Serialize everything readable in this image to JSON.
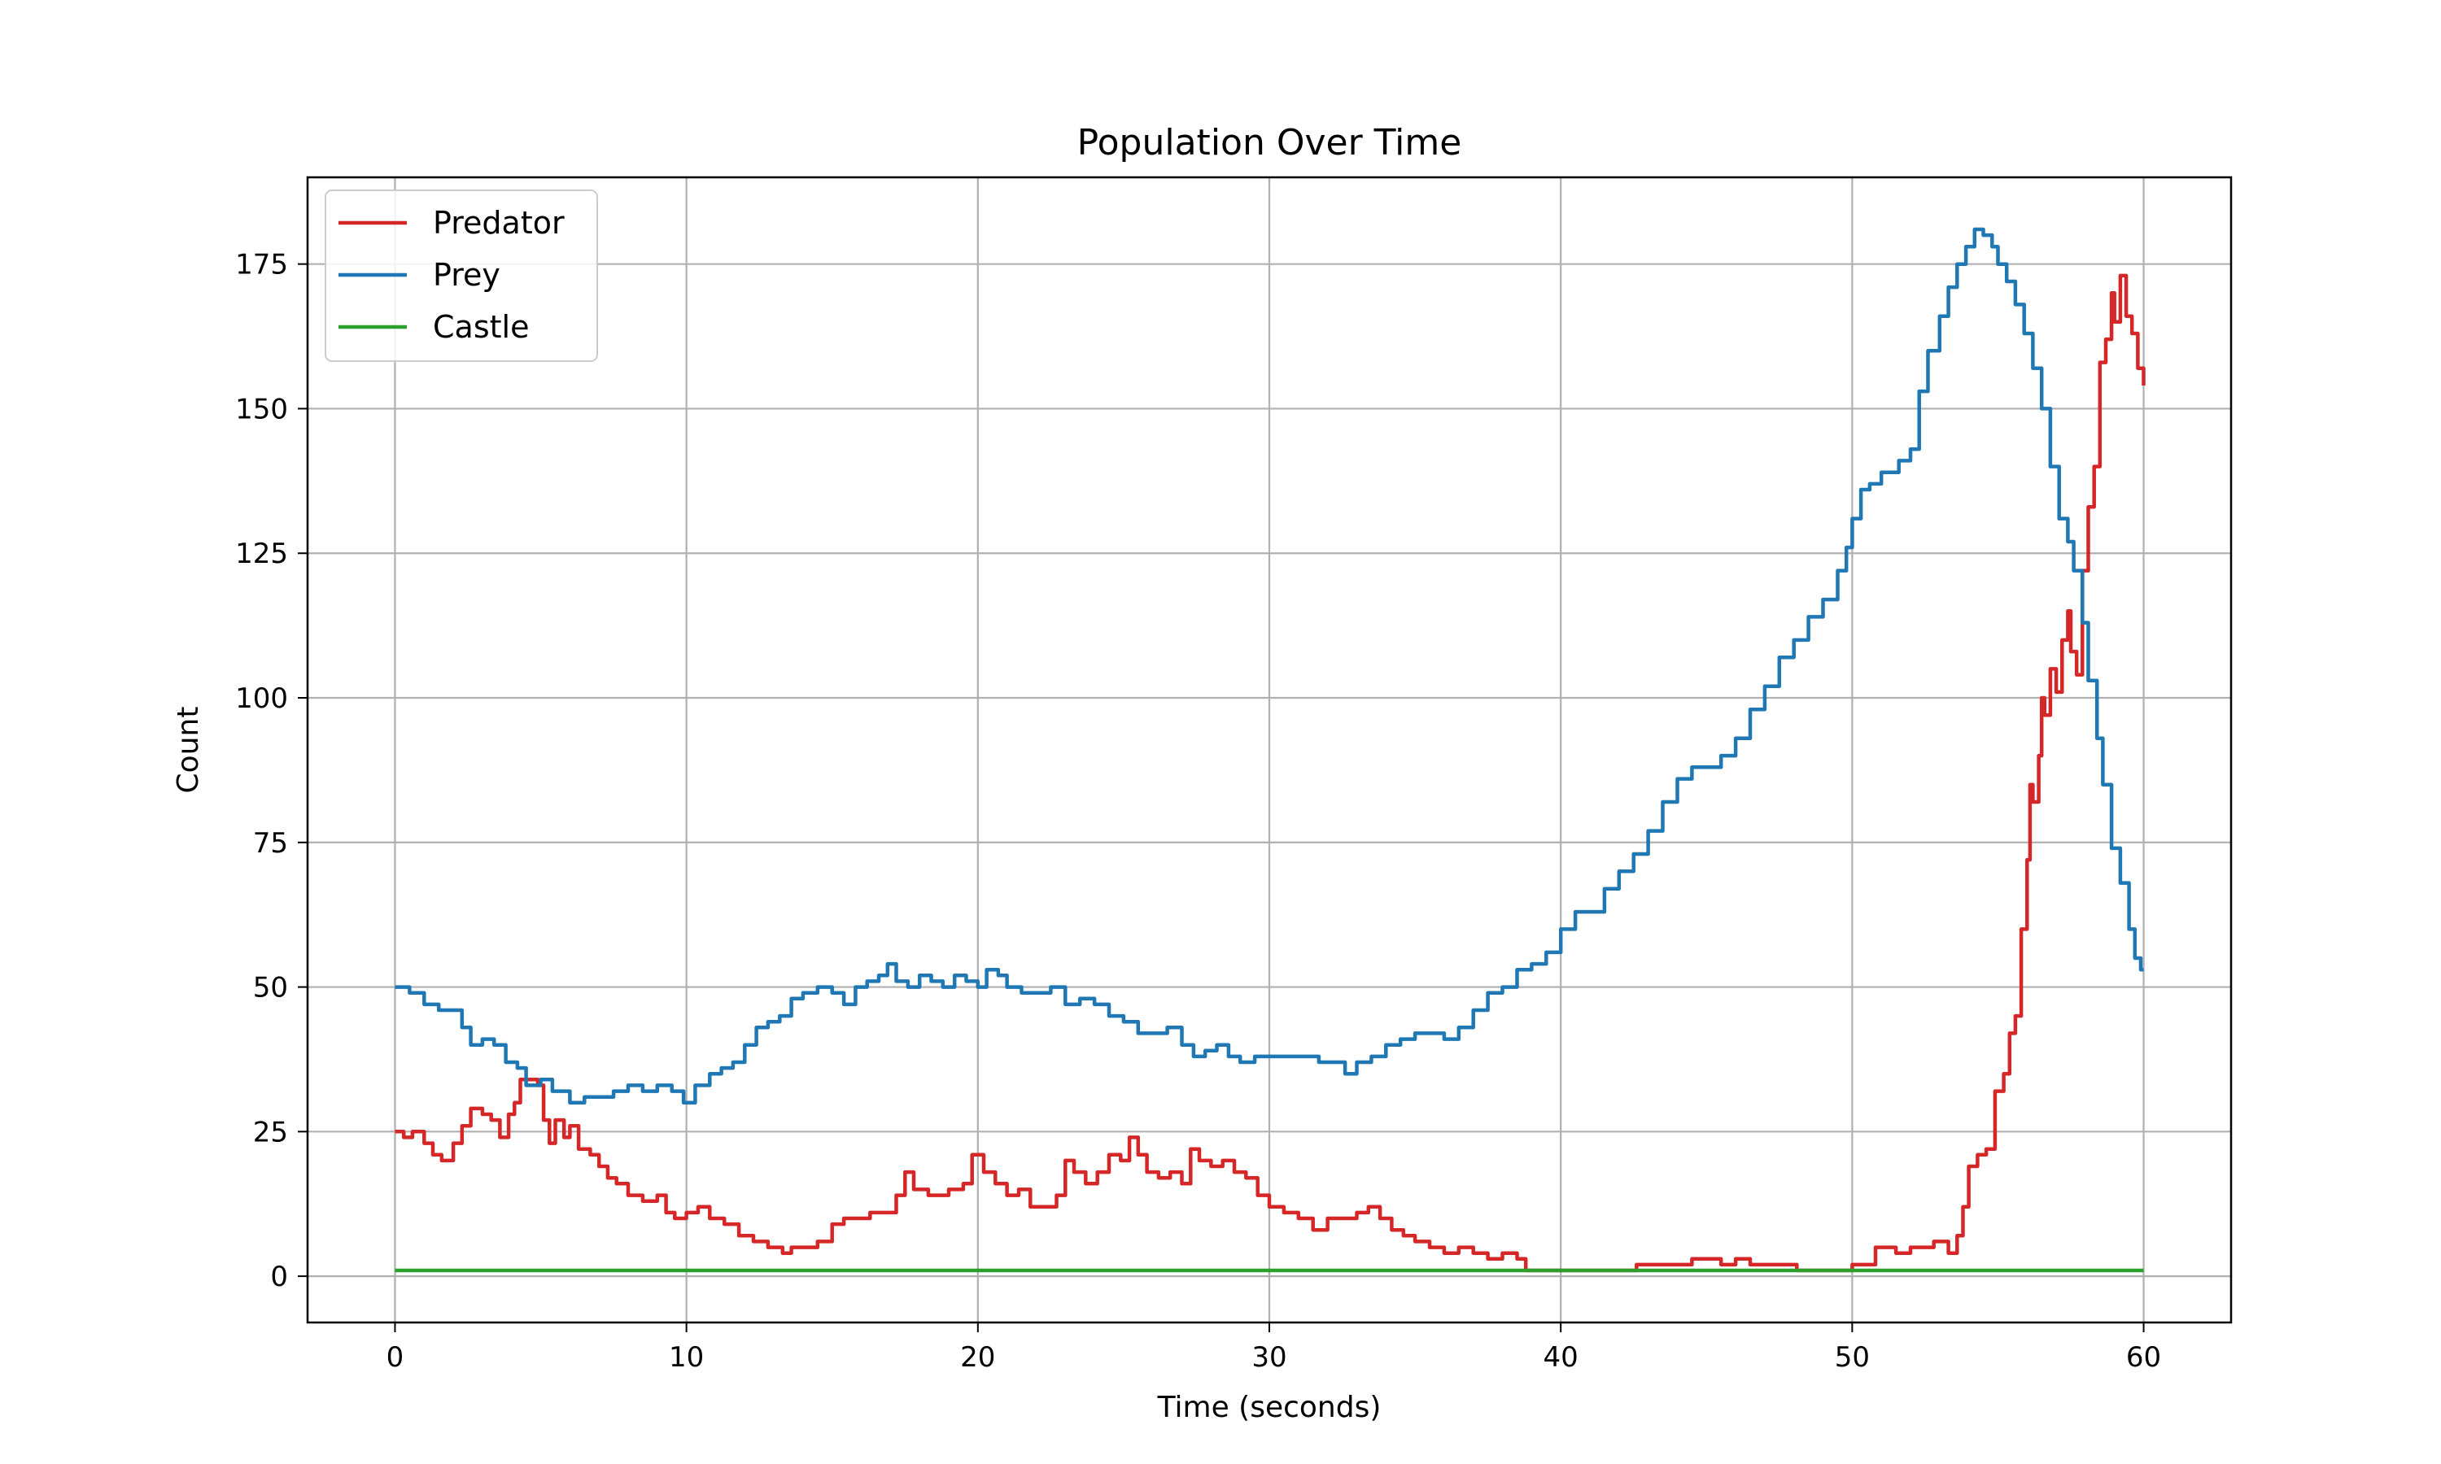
{
  "chart_data": {
    "type": "line",
    "title": "Population Over Time",
    "xlabel": "Time (seconds)",
    "ylabel": "Count",
    "xlim": [
      -3,
      63
    ],
    "ylim": [
      -8,
      190
    ],
    "xticks": [
      0,
      10,
      20,
      30,
      40,
      50,
      60
    ],
    "yticks": [
      0,
      25,
      50,
      75,
      100,
      125,
      150,
      175
    ],
    "grid": true,
    "legend_position": "top-left",
    "series": [
      {
        "name": "Predator",
        "color": "#d62728",
        "step": true,
        "points": [
          [
            0,
            25
          ],
          [
            0.3,
            24
          ],
          [
            0.6,
            25
          ],
          [
            1.0,
            23
          ],
          [
            1.3,
            21
          ],
          [
            1.6,
            20
          ],
          [
            2.0,
            23
          ],
          [
            2.3,
            26
          ],
          [
            2.6,
            29
          ],
          [
            3.0,
            28
          ],
          [
            3.3,
            27
          ],
          [
            3.6,
            24
          ],
          [
            3.9,
            28
          ],
          [
            4.1,
            30
          ],
          [
            4.3,
            34
          ],
          [
            4.6,
            34
          ],
          [
            4.9,
            33
          ],
          [
            5.1,
            27
          ],
          [
            5.3,
            23
          ],
          [
            5.5,
            27
          ],
          [
            5.8,
            24
          ],
          [
            6.0,
            26
          ],
          [
            6.3,
            22
          ],
          [
            6.7,
            21
          ],
          [
            7.0,
            19
          ],
          [
            7.3,
            17
          ],
          [
            7.6,
            16
          ],
          [
            8.0,
            14
          ],
          [
            8.5,
            13
          ],
          [
            9.0,
            14
          ],
          [
            9.3,
            11
          ],
          [
            9.6,
            10
          ],
          [
            10.0,
            11
          ],
          [
            10.4,
            12
          ],
          [
            10.8,
            10
          ],
          [
            11.3,
            9
          ],
          [
            11.8,
            7
          ],
          [
            12.3,
            6
          ],
          [
            12.8,
            5
          ],
          [
            13.3,
            4
          ],
          [
            13.6,
            5
          ],
          [
            14.0,
            5
          ],
          [
            14.5,
            6
          ],
          [
            15.0,
            9
          ],
          [
            15.4,
            10
          ],
          [
            15.8,
            10
          ],
          [
            16.3,
            11
          ],
          [
            16.8,
            11
          ],
          [
            17.2,
            14
          ],
          [
            17.5,
            18
          ],
          [
            17.8,
            15
          ],
          [
            18.3,
            14
          ],
          [
            19.0,
            15
          ],
          [
            19.5,
            16
          ],
          [
            19.8,
            21
          ],
          [
            20.2,
            18
          ],
          [
            20.6,
            16
          ],
          [
            21.0,
            14
          ],
          [
            21.4,
            15
          ],
          [
            21.8,
            12
          ],
          [
            22.3,
            12
          ],
          [
            22.7,
            14
          ],
          [
            23.0,
            20
          ],
          [
            23.3,
            18
          ],
          [
            23.7,
            16
          ],
          [
            24.1,
            18
          ],
          [
            24.5,
            21
          ],
          [
            24.9,
            20
          ],
          [
            25.2,
            24
          ],
          [
            25.5,
            21
          ],
          [
            25.8,
            18
          ],
          [
            26.2,
            17
          ],
          [
            26.6,
            18
          ],
          [
            27.0,
            16
          ],
          [
            27.3,
            22
          ],
          [
            27.6,
            20
          ],
          [
            28.0,
            19
          ],
          [
            28.4,
            20
          ],
          [
            28.8,
            18
          ],
          [
            29.2,
            17
          ],
          [
            29.6,
            14
          ],
          [
            30.0,
            12
          ],
          [
            30.5,
            11
          ],
          [
            31.0,
            10
          ],
          [
            31.5,
            8
          ],
          [
            32.0,
            10
          ],
          [
            32.5,
            10
          ],
          [
            33.0,
            11
          ],
          [
            33.4,
            12
          ],
          [
            33.8,
            10
          ],
          [
            34.2,
            8
          ],
          [
            34.6,
            7
          ],
          [
            35.0,
            6
          ],
          [
            35.5,
            5
          ],
          [
            36.0,
            4
          ],
          [
            36.5,
            5
          ],
          [
            37.0,
            4
          ],
          [
            37.5,
            3
          ],
          [
            38.0,
            4
          ],
          [
            38.5,
            3
          ],
          [
            38.8,
            1
          ],
          [
            42.4,
            1
          ],
          [
            42.6,
            2
          ],
          [
            44.0,
            2
          ],
          [
            44.5,
            3
          ],
          [
            45.0,
            3
          ],
          [
            45.5,
            2
          ],
          [
            46.0,
            3
          ],
          [
            46.5,
            2
          ],
          [
            48.1,
            2
          ],
          [
            48.1,
            1
          ],
          [
            49.8,
            1
          ],
          [
            50.0,
            2
          ],
          [
            50.7,
            2
          ],
          [
            50.8,
            5
          ],
          [
            51.5,
            4
          ],
          [
            52.0,
            5
          ],
          [
            52.5,
            5
          ],
          [
            52.8,
            6
          ],
          [
            53.3,
            4
          ],
          [
            53.6,
            7
          ],
          [
            53.8,
            12
          ],
          [
            54.0,
            19
          ],
          [
            54.3,
            21
          ],
          [
            54.6,
            22
          ],
          [
            54.9,
            32
          ],
          [
            55.2,
            35
          ],
          [
            55.4,
            42
          ],
          [
            55.6,
            45
          ],
          [
            55.8,
            60
          ],
          [
            56.0,
            72
          ],
          [
            56.1,
            85
          ],
          [
            56.2,
            82
          ],
          [
            56.4,
            90
          ],
          [
            56.5,
            100
          ],
          [
            56.6,
            97
          ],
          [
            56.8,
            105
          ],
          [
            57.0,
            101
          ],
          [
            57.2,
            110
          ],
          [
            57.4,
            115
          ],
          [
            57.5,
            108
          ],
          [
            57.7,
            104
          ],
          [
            57.9,
            122
          ],
          [
            58.1,
            133
          ],
          [
            58.3,
            140
          ],
          [
            58.5,
            158
          ],
          [
            58.7,
            162
          ],
          [
            58.9,
            170
          ],
          [
            59.0,
            165
          ],
          [
            59.2,
            173
          ],
          [
            59.4,
            166
          ],
          [
            59.6,
            163
          ],
          [
            59.8,
            157
          ],
          [
            60.0,
            154
          ]
        ]
      },
      {
        "name": "Prey",
        "color": "#1f77b4",
        "step": true,
        "points": [
          [
            0,
            50
          ],
          [
            0.5,
            49
          ],
          [
            1.0,
            47
          ],
          [
            1.5,
            46
          ],
          [
            2.0,
            46
          ],
          [
            2.3,
            43
          ],
          [
            2.6,
            40
          ],
          [
            3.0,
            41
          ],
          [
            3.4,
            40
          ],
          [
            3.8,
            37
          ],
          [
            4.2,
            36
          ],
          [
            4.5,
            33
          ],
          [
            5.0,
            34
          ],
          [
            5.4,
            32
          ],
          [
            6.0,
            30
          ],
          [
            6.5,
            31
          ],
          [
            7.0,
            31
          ],
          [
            7.5,
            32
          ],
          [
            8.0,
            33
          ],
          [
            8.5,
            32
          ],
          [
            9.0,
            33
          ],
          [
            9.5,
            32
          ],
          [
            9.9,
            30
          ],
          [
            10.3,
            33
          ],
          [
            10.8,
            35
          ],
          [
            11.2,
            36
          ],
          [
            11.6,
            37
          ],
          [
            12.0,
            40
          ],
          [
            12.4,
            43
          ],
          [
            12.8,
            44
          ],
          [
            13.2,
            45
          ],
          [
            13.6,
            48
          ],
          [
            14.0,
            49
          ],
          [
            14.5,
            50
          ],
          [
            15.0,
            49
          ],
          [
            15.4,
            47
          ],
          [
            15.8,
            50
          ],
          [
            16.2,
            51
          ],
          [
            16.6,
            52
          ],
          [
            16.9,
            54
          ],
          [
            17.2,
            51
          ],
          [
            17.6,
            50
          ],
          [
            18.0,
            52
          ],
          [
            18.4,
            51
          ],
          [
            18.8,
            50
          ],
          [
            19.2,
            52
          ],
          [
            19.6,
            51
          ],
          [
            20.0,
            50
          ],
          [
            20.3,
            53
          ],
          [
            20.7,
            52
          ],
          [
            21.0,
            50
          ],
          [
            21.5,
            49
          ],
          [
            22.0,
            49
          ],
          [
            22.5,
            50
          ],
          [
            23.0,
            47
          ],
          [
            23.5,
            48
          ],
          [
            24.0,
            47
          ],
          [
            24.5,
            45
          ],
          [
            25.0,
            44
          ],
          [
            25.5,
            42
          ],
          [
            26.0,
            42
          ],
          [
            26.5,
            43
          ],
          [
            27.0,
            40
          ],
          [
            27.4,
            38
          ],
          [
            27.8,
            39
          ],
          [
            28.2,
            40
          ],
          [
            28.6,
            38
          ],
          [
            29.0,
            37
          ],
          [
            29.5,
            38
          ],
          [
            30.0,
            38
          ],
          [
            30.6,
            38
          ],
          [
            31.2,
            38
          ],
          [
            31.7,
            37
          ],
          [
            32.2,
            37
          ],
          [
            32.6,
            35
          ],
          [
            33.0,
            37
          ],
          [
            33.5,
            38
          ],
          [
            34.0,
            40
          ],
          [
            34.5,
            41
          ],
          [
            35.0,
            42
          ],
          [
            35.5,
            42
          ],
          [
            36.0,
            41
          ],
          [
            36.5,
            43
          ],
          [
            37.0,
            46
          ],
          [
            37.5,
            49
          ],
          [
            38.0,
            50
          ],
          [
            38.5,
            53
          ],
          [
            39.0,
            54
          ],
          [
            39.5,
            56
          ],
          [
            40.0,
            60
          ],
          [
            40.5,
            63
          ],
          [
            41.0,
            63
          ],
          [
            41.5,
            67
          ],
          [
            42.0,
            70
          ],
          [
            42.5,
            73
          ],
          [
            43.0,
            77
          ],
          [
            43.5,
            82
          ],
          [
            44.0,
            86
          ],
          [
            44.5,
            88
          ],
          [
            45.0,
            88
          ],
          [
            45.5,
            90
          ],
          [
            46.0,
            93
          ],
          [
            46.5,
            98
          ],
          [
            47.0,
            102
          ],
          [
            47.5,
            107
          ],
          [
            48.0,
            110
          ],
          [
            48.5,
            114
          ],
          [
            49.0,
            117
          ],
          [
            49.5,
            122
          ],
          [
            49.8,
            126
          ],
          [
            50.0,
            131
          ],
          [
            50.3,
            136
          ],
          [
            50.6,
            137
          ],
          [
            51.0,
            139
          ],
          [
            51.3,
            139
          ],
          [
            51.6,
            141
          ],
          [
            52.0,
            143
          ],
          [
            52.3,
            153
          ],
          [
            52.6,
            160
          ],
          [
            53.0,
            166
          ],
          [
            53.3,
            171
          ],
          [
            53.6,
            175
          ],
          [
            53.9,
            178
          ],
          [
            54.2,
            181
          ],
          [
            54.5,
            180
          ],
          [
            54.8,
            178
          ],
          [
            55.0,
            175
          ],
          [
            55.3,
            172
          ],
          [
            55.6,
            168
          ],
          [
            55.9,
            163
          ],
          [
            56.2,
            157
          ],
          [
            56.5,
            150
          ],
          [
            56.8,
            140
          ],
          [
            57.1,
            131
          ],
          [
            57.4,
            127
          ],
          [
            57.6,
            122
          ],
          [
            57.9,
            113
          ],
          [
            58.1,
            103
          ],
          [
            58.4,
            93
          ],
          [
            58.6,
            85
          ],
          [
            58.9,
            74
          ],
          [
            59.2,
            68
          ],
          [
            59.5,
            60
          ],
          [
            59.7,
            55
          ],
          [
            59.9,
            53
          ],
          [
            60.0,
            53
          ]
        ]
      },
      {
        "name": "Castle",
        "color": "#2ca02c",
        "step": false,
        "points": [
          [
            0,
            1
          ],
          [
            60,
            1
          ]
        ]
      }
    ]
  }
}
